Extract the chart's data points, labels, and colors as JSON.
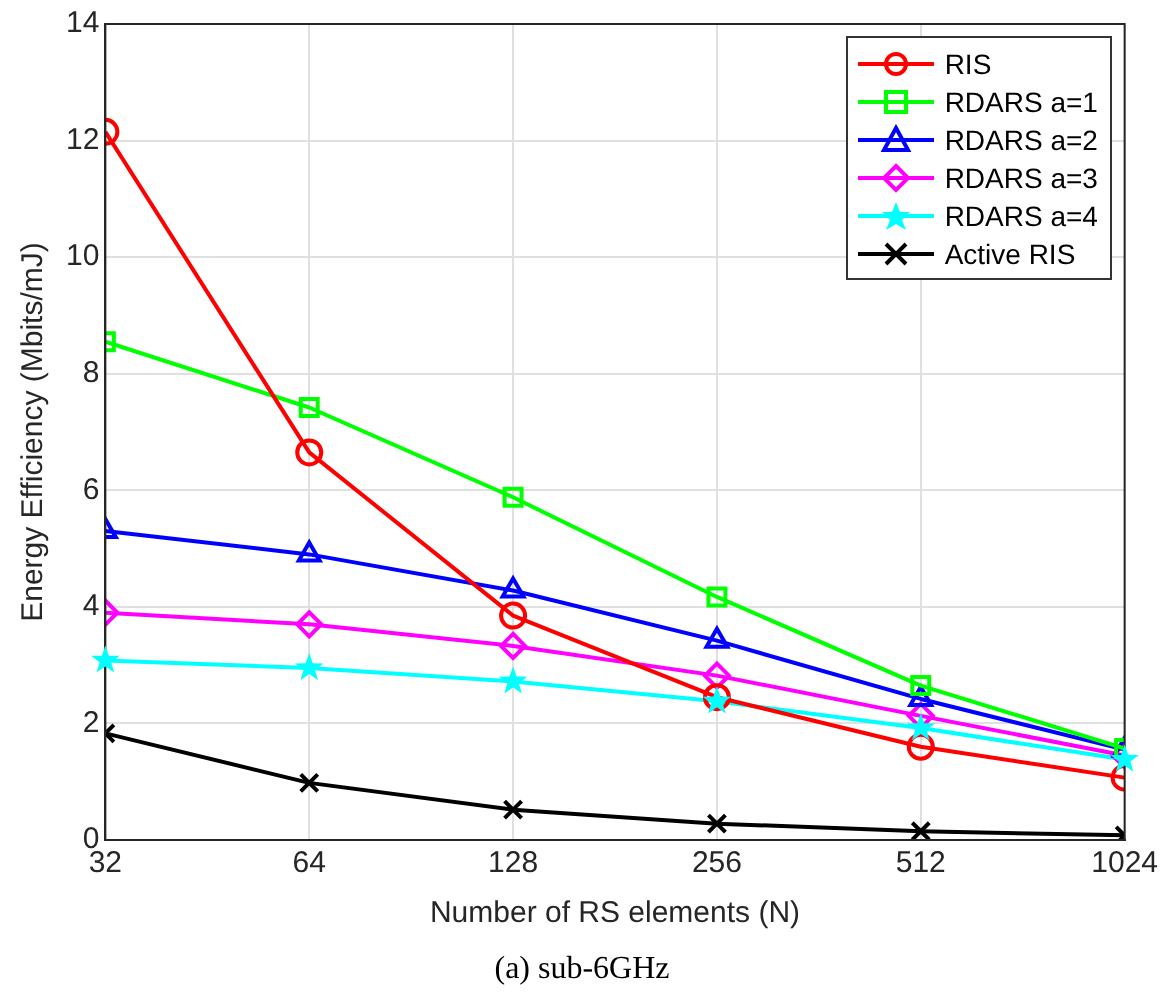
{
  "chart_data": {
    "type": "line",
    "xlabel": "Number of RS elements (N)",
    "ylabel": "Energy Efficiency (Mbits/mJ)",
    "annotations": [
      "(a) sub-6GHz"
    ],
    "x": [
      32,
      64,
      128,
      256,
      512,
      1024
    ],
    "log": "x",
    "xlim": [
      32,
      1024
    ],
    "xticks": [
      32,
      64,
      128,
      256,
      512,
      1024
    ],
    "ylim": [
      0,
      14
    ],
    "yticks": [
      0,
      2,
      4,
      6,
      8,
      10,
      12,
      14
    ],
    "grid": true,
    "legend": "top right",
    "line_style": "solid",
    "series": [
      {
        "name": "RIS",
        "color": "#ff0000",
        "marker": "circle",
        "values": [
          12.15,
          6.65,
          3.85,
          2.45,
          1.6,
          1.07
        ]
      },
      {
        "name": "RDARS a=1",
        "color": "#00ff00",
        "marker": "square",
        "values": [
          8.55,
          7.42,
          5.88,
          4.17,
          2.65,
          1.57
        ]
      },
      {
        "name": "RDARS a=2",
        "color": "#0000ff",
        "marker": "triangle",
        "values": [
          5.3,
          4.9,
          4.28,
          3.42,
          2.42,
          1.55
        ]
      },
      {
        "name": "RDARS a=3",
        "color": "#ff00ff",
        "marker": "diamond",
        "values": [
          3.9,
          3.7,
          3.33,
          2.82,
          2.13,
          1.45
        ]
      },
      {
        "name": "RDARS a=4",
        "color": "#00ffff",
        "marker": "star",
        "values": [
          3.08,
          2.95,
          2.72,
          2.38,
          1.92,
          1.38
        ]
      },
      {
        "name": "Active RIS",
        "color": "#000000",
        "marker": "cross",
        "values": [
          1.83,
          0.98,
          0.52,
          0.28,
          0.15,
          0.08
        ]
      }
    ]
  }
}
